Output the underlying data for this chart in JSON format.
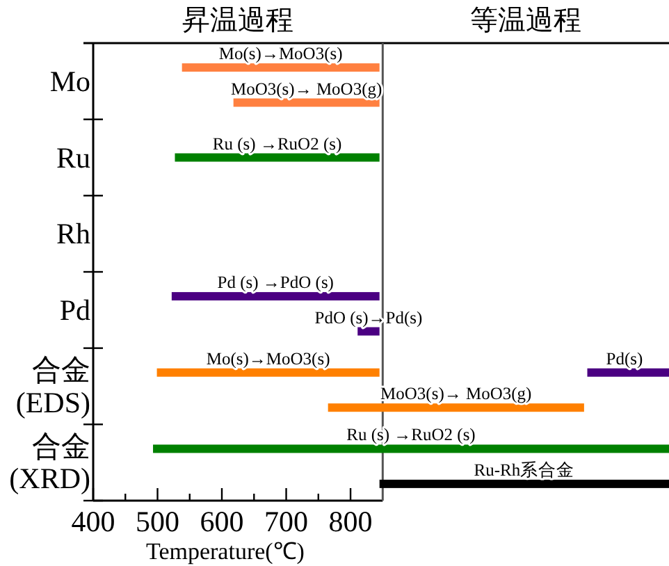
{
  "chart_data": {
    "type": "bar",
    "orientation": "horizontal",
    "xlabel": "Temperature(℃)",
    "categories": [
      "Mo",
      "Ru",
      "Rh",
      "Pd",
      "合金\n(EDS)",
      "合金\n(XRD)"
    ],
    "xlim": [
      400,
      1295
    ],
    "xticks": [
      400,
      {
        "value": 450,
        "label": null
      },
      500,
      {
        "value": 550,
        "label": null
      },
      600,
      {
        "value": 650,
        "label": null
      },
      700,
      {
        "value": 750,
        "label": null
      },
      800
    ],
    "annotations": [
      "昇温過程",
      "等温過程"
    ],
    "ref_lines": [
      {
        "axis": "x",
        "value": 850,
        "color": "#555555"
      }
    ],
    "grid": false,
    "legend": false,
    "series": [
      {
        "name": "Mo(s)→MoO3(s)",
        "color": "#ff8040",
        "values": [
          307,
          null,
          null,
          null,
          null,
          null
        ],
        "base": [
          538,
          null,
          null,
          null,
          null,
          null
        ]
      },
      {
        "name": "MoO3(s)→ MoO3(g)",
        "color": "#ff8040",
        "values": [
          227,
          null,
          null,
          null,
          null,
          null
        ],
        "base": [
          618,
          null,
          null,
          null,
          null,
          null
        ]
      },
      {
        "name": "Ru (s) →RuO2 (s)",
        "color": "#008000",
        "values": [
          null,
          318,
          null,
          null,
          null,
          null
        ],
        "base": [
          null,
          527,
          null,
          null,
          null,
          null
        ]
      },
      {
        "name": "Pd (s) →PdO (s)",
        "color": "#4b0082",
        "values": [
          null,
          null,
          null,
          323,
          null,
          null
        ],
        "base": [
          null,
          null,
          null,
          522,
          null,
          null
        ]
      },
      {
        "name": "PdO (s)→Pd(s)",
        "color": "#4b0082",
        "values": [
          null,
          null,
          null,
          34,
          null,
          null
        ],
        "base": [
          null,
          null,
          null,
          811,
          null,
          null
        ]
      },
      {
        "name": "Mo(s)→MoO3(s)",
        "color": "#ff8000",
        "values": [
          null,
          null,
          null,
          null,
          346,
          null
        ],
        "base": [
          null,
          null,
          null,
          null,
          499,
          null
        ]
      },
      {
        "name": "MoO3(s)→ MoO3(g)",
        "color": "#ff8000",
        "values": [
          null,
          null,
          null,
          null,
          398,
          null
        ],
        "base": [
          null,
          null,
          null,
          null,
          765,
          null
        ]
      },
      {
        "name": "Pd(s)",
        "color": "#4b0082",
        "values": [
          null,
          null,
          null,
          null,
          127,
          null
        ],
        "base": [
          null,
          null,
          null,
          null,
          1168,
          null
        ]
      },
      {
        "name": "Ru (s) →RuO2 (s)",
        "color": "#008000",
        "values": [
          null,
          null,
          null,
          null,
          null,
          802
        ],
        "base": [
          null,
          null,
          null,
          null,
          null,
          493
        ]
      },
      {
        "name": "Ru-Rh系合金",
        "color": "#000000",
        "values": [
          null,
          null,
          null,
          null,
          null,
          450
        ],
        "base": [
          null,
          null,
          null,
          null,
          null,
          845
        ]
      }
    ]
  }
}
